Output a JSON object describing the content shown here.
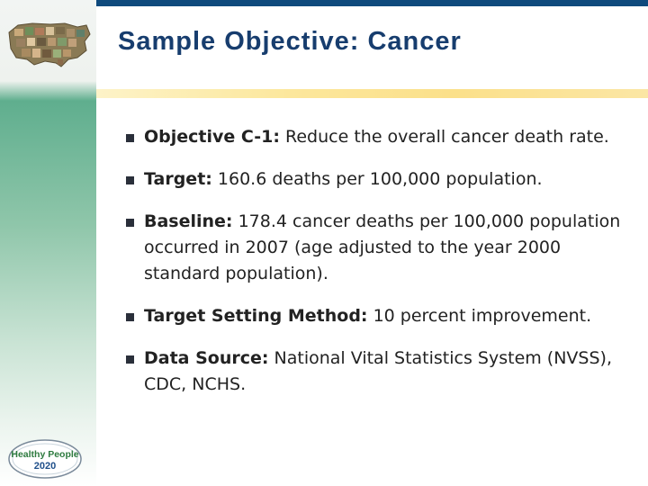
{
  "slide": {
    "title": "Sample Objective: Cancer"
  },
  "bullets": [
    {
      "label": "Objective C-1:",
      "text": " Reduce the overall cancer death rate."
    },
    {
      "label": "Target:",
      "text": " 160.6 deaths per 100,000 population."
    },
    {
      "label": "Baseline:",
      "text": " 178.4 cancer deaths per 100,000 population occurred in 2007 (age adjusted to the year 2000 standard population)."
    },
    {
      "label": "Target Setting Method:",
      "text": " 10 percent improvement."
    },
    {
      "label": "Data Source:",
      "text": " National Vital Statistics System (NVSS), CDC, NCHS."
    }
  ],
  "logo": {
    "line1": "Healthy People",
    "line2": "2020"
  },
  "colors": {
    "title": "#173d6e",
    "top_bar": "#0f4a7d",
    "accent_green": "#5fae8e",
    "accent_yellow": "#fbe08a",
    "bullet_marker": "#2a2f3a"
  }
}
